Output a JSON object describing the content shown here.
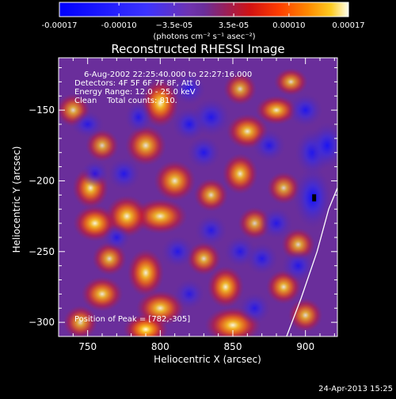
{
  "chart_data": {
    "type": "heatmap",
    "title": "Reconstructed RHESSI Image",
    "xlabel": "Heliocentric X (arcsec)",
    "ylabel": "Heliocentric Y (arcsec)",
    "xlim": [
      730,
      922
    ],
    "ylim": [
      -310,
      -113
    ],
    "xticks": [
      750,
      800,
      850,
      900
    ],
    "yticks": [
      -150,
      -200,
      -250,
      -300
    ],
    "colorbar": {
      "min": -0.00017,
      "max": 0.00017,
      "tick_values": [
        -0.00017,
        -0.0001,
        -3.5e-05,
        3.5e-05,
        0.0001,
        0.00017
      ],
      "tick_labels": [
        "-0.00017",
        "-0.00010",
        "−3.5e-05",
        "3.5e-05",
        "0.00010",
        "0.00017"
      ],
      "units": "(photons cm⁻² s⁻¹ asec⁻²)"
    },
    "annotations": [
      "6-Aug-2002 22:25:40.000 to 22:27:16.000",
      "Detectors: 4F 5F 6F 7F 8F, Att 0",
      "Energy Range: 12.0 - 25.0 keV",
      "Clean    Total counts: 810."
    ],
    "peak_label": "Position of Peak = [782,-305]",
    "peak_position": [
      782,
      -305
    ],
    "limb_curve": [
      [
        887,
        -310
      ],
      [
        897,
        -283
      ],
      [
        908,
        -250
      ],
      [
        916,
        -220
      ],
      [
        922,
        -205
      ]
    ],
    "blobs": [
      {
        "x": 800,
        "y": -145,
        "sx": 6,
        "sy": 8,
        "a": 0.9
      },
      {
        "x": 790,
        "y": -175,
        "sx": 7,
        "sy": 7,
        "a": 0.7
      },
      {
        "x": 810,
        "y": -200,
        "sx": 7,
        "sy": 7,
        "a": 0.75
      },
      {
        "x": 800,
        "y": -225,
        "sx": 9,
        "sy": 6,
        "a": 0.8
      },
      {
        "x": 777,
        "y": -225,
        "sx": 7,
        "sy": 7,
        "a": 0.85
      },
      {
        "x": 755,
        "y": -230,
        "sx": 7,
        "sy": 6,
        "a": 0.9
      },
      {
        "x": 752,
        "y": -205,
        "sx": 6,
        "sy": 7,
        "a": 0.8
      },
      {
        "x": 760,
        "y": -175,
        "sx": 6,
        "sy": 6,
        "a": 0.5
      },
      {
        "x": 765,
        "y": -255,
        "sx": 6,
        "sy": 6,
        "a": 0.6
      },
      {
        "x": 790,
        "y": -265,
        "sx": 6,
        "sy": 8,
        "a": 0.85
      },
      {
        "x": 760,
        "y": -280,
        "sx": 7,
        "sy": 6,
        "a": 0.75
      },
      {
        "x": 800,
        "y": -290,
        "sx": 8,
        "sy": 6,
        "a": 0.8
      },
      {
        "x": 790,
        "y": -305,
        "sx": 7,
        "sy": 5,
        "a": 1.0
      },
      {
        "x": 850,
        "y": -302,
        "sx": 9,
        "sy": 6,
        "a": 0.9
      },
      {
        "x": 845,
        "y": -275,
        "sx": 6,
        "sy": 7,
        "a": 0.85
      },
      {
        "x": 830,
        "y": -255,
        "sx": 6,
        "sy": 6,
        "a": 0.6
      },
      {
        "x": 885,
        "y": -275,
        "sx": 6,
        "sy": 6,
        "a": 0.7
      },
      {
        "x": 900,
        "y": -295,
        "sx": 6,
        "sy": 6,
        "a": 0.6
      },
      {
        "x": 895,
        "y": -245,
        "sx": 6,
        "sy": 6,
        "a": 0.55
      },
      {
        "x": 865,
        "y": -230,
        "sx": 6,
        "sy": 6,
        "a": 0.5
      },
      {
        "x": 855,
        "y": -195,
        "sx": 6,
        "sy": 7,
        "a": 0.75
      },
      {
        "x": 860,
        "y": -165,
        "sx": 7,
        "sy": 6,
        "a": 0.75
      },
      {
        "x": 880,
        "y": -150,
        "sx": 7,
        "sy": 5,
        "a": 0.75
      },
      {
        "x": 890,
        "y": -130,
        "sx": 6,
        "sy": 5,
        "a": 0.55
      },
      {
        "x": 855,
        "y": -135,
        "sx": 6,
        "sy": 6,
        "a": 0.5
      },
      {
        "x": 835,
        "y": -210,
        "sx": 6,
        "sy": 6,
        "a": 0.6
      },
      {
        "x": 885,
        "y": -205,
        "sx": 6,
        "sy": 6,
        "a": 0.5
      },
      {
        "x": 740,
        "y": -150,
        "sx": 6,
        "sy": 6,
        "a": 0.55
      },
      {
        "x": 745,
        "y": -300,
        "sx": 6,
        "sy": 6,
        "a": 0.6
      },
      {
        "x": 830,
        "y": -180,
        "sx": 6,
        "sy": 6,
        "a": -0.55
      },
      {
        "x": 812,
        "y": -250,
        "sx": 6,
        "sy": 6,
        "a": -0.45
      },
      {
        "x": 785,
        "y": -155,
        "sx": 5,
        "sy": 6,
        "a": -0.45
      },
      {
        "x": 775,
        "y": -195,
        "sx": 6,
        "sy": 6,
        "a": -0.5
      },
      {
        "x": 820,
        "y": -160,
        "sx": 6,
        "sy": 6,
        "a": -0.6
      },
      {
        "x": 835,
        "y": -155,
        "sx": 7,
        "sy": 7,
        "a": -0.55
      },
      {
        "x": 835,
        "y": -235,
        "sx": 6,
        "sy": 6,
        "a": -0.4
      },
      {
        "x": 855,
        "y": -250,
        "sx": 6,
        "sy": 6,
        "a": -0.4
      },
      {
        "x": 870,
        "y": -255,
        "sx": 6,
        "sy": 6,
        "a": -0.45
      },
      {
        "x": 875,
        "y": -175,
        "sx": 6,
        "sy": 6,
        "a": -0.45
      },
      {
        "x": 905,
        "y": -212,
        "sx": 6,
        "sy": 10,
        "a": -1.0
      },
      {
        "x": 905,
        "y": -180,
        "sx": 6,
        "sy": 8,
        "a": -0.75
      },
      {
        "x": 900,
        "y": -150,
        "sx": 6,
        "sy": 6,
        "a": -0.6
      },
      {
        "x": 915,
        "y": -175,
        "sx": 6,
        "sy": 8,
        "a": -0.75
      },
      {
        "x": 895,
        "y": -260,
        "sx": 6,
        "sy": 6,
        "a": -0.5
      },
      {
        "x": 880,
        "y": -230,
        "sx": 6,
        "sy": 6,
        "a": -0.45
      },
      {
        "x": 865,
        "y": -290,
        "sx": 6,
        "sy": 6,
        "a": -0.4
      },
      {
        "x": 755,
        "y": -195,
        "sx": 5,
        "sy": 5,
        "a": -0.5
      },
      {
        "x": 770,
        "y": -240,
        "sx": 5,
        "sy": 5,
        "a": -0.4
      },
      {
        "x": 820,
        "y": -280,
        "sx": 6,
        "sy": 6,
        "a": -0.3
      },
      {
        "x": 750,
        "y": -160,
        "sx": 6,
        "sy": 5,
        "a": -0.4
      },
      {
        "x": 820,
        "y": -135,
        "sx": 6,
        "sy": 6,
        "a": -0.4
      }
    ],
    "colormap": [
      [
        0.0,
        "#0000ff"
      ],
      [
        0.3,
        "#3c33ff"
      ],
      [
        0.45,
        "#6f33b0"
      ],
      [
        0.5,
        "#6a2e9b"
      ],
      [
        0.58,
        "#9c1f55"
      ],
      [
        0.66,
        "#d21212"
      ],
      [
        0.76,
        "#ff3d00"
      ],
      [
        0.86,
        "#ff8a00"
      ],
      [
        0.94,
        "#ffcc22"
      ],
      [
        1.0,
        "#ffffee"
      ]
    ]
  },
  "footer": {
    "timestamp": "24-Apr-2013 15:25"
  }
}
